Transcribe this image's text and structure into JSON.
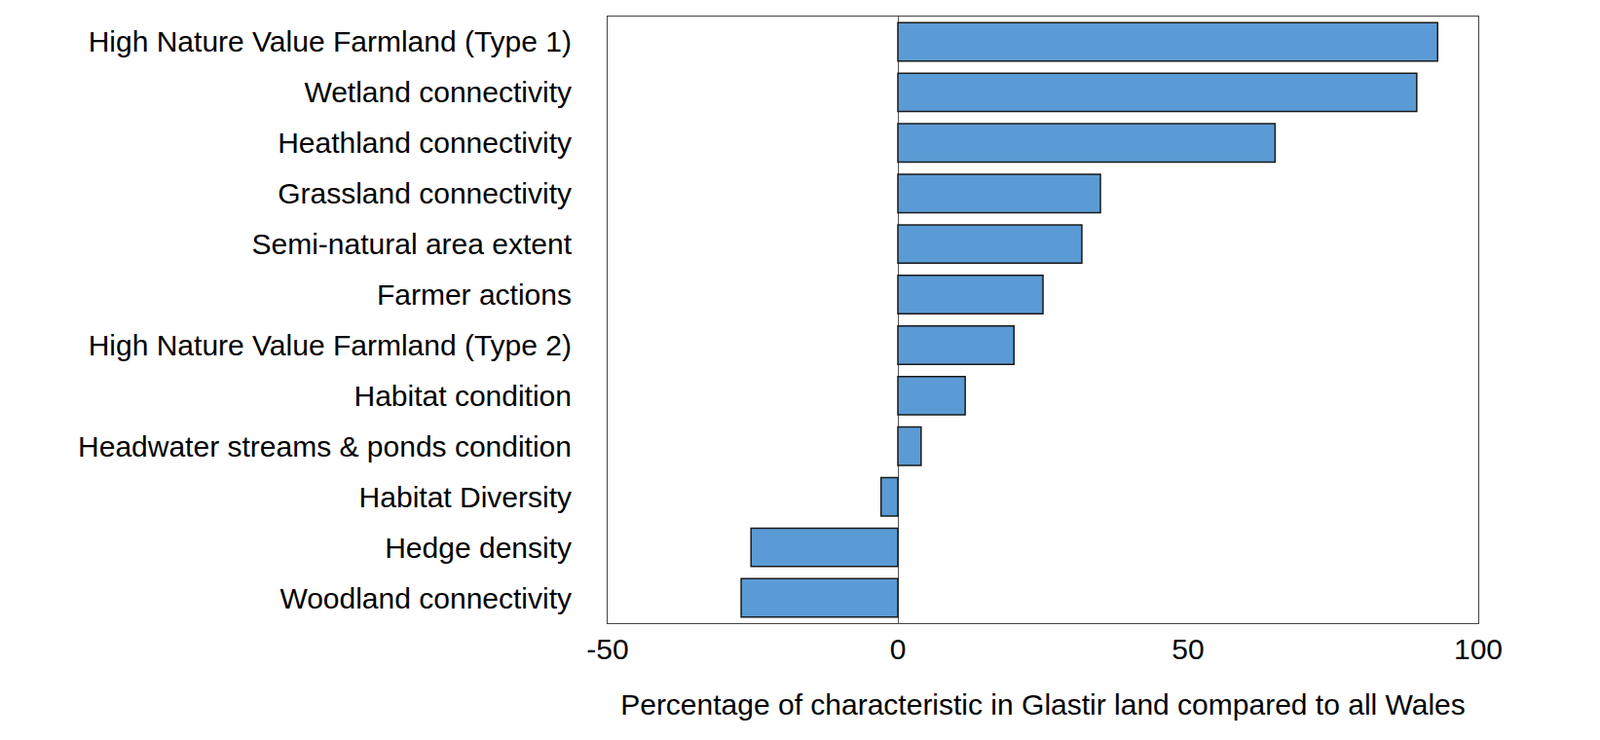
{
  "chart_data": {
    "type": "bar",
    "orientation": "horizontal",
    "categories": [
      "High Nature Value Farmland (Type 1)",
      "Wetland connectivity",
      "Heathland connectivity",
      "Grassland connectivity",
      "Semi-natural area extent",
      "Farmer actions",
      "High Nature Value Farmland (Type 2)",
      "Habitat condition",
      "Headwater streams & ponds condition",
      "Habitat Diversity",
      "Hedge density",
      "Woodland connectivity"
    ],
    "values": [
      93,
      89.4,
      65,
      34.9,
      31.7,
      25,
      20,
      11.6,
      4,
      -2.9,
      -25.3,
      -27
    ],
    "color": "#5b9bd5",
    "x_label": "Percentage of characteristic in Glastir land compared to all Wales",
    "xlim": [
      -50,
      100
    ],
    "xticks": [
      -50,
      0,
      50,
      100
    ],
    "grid": false
  }
}
